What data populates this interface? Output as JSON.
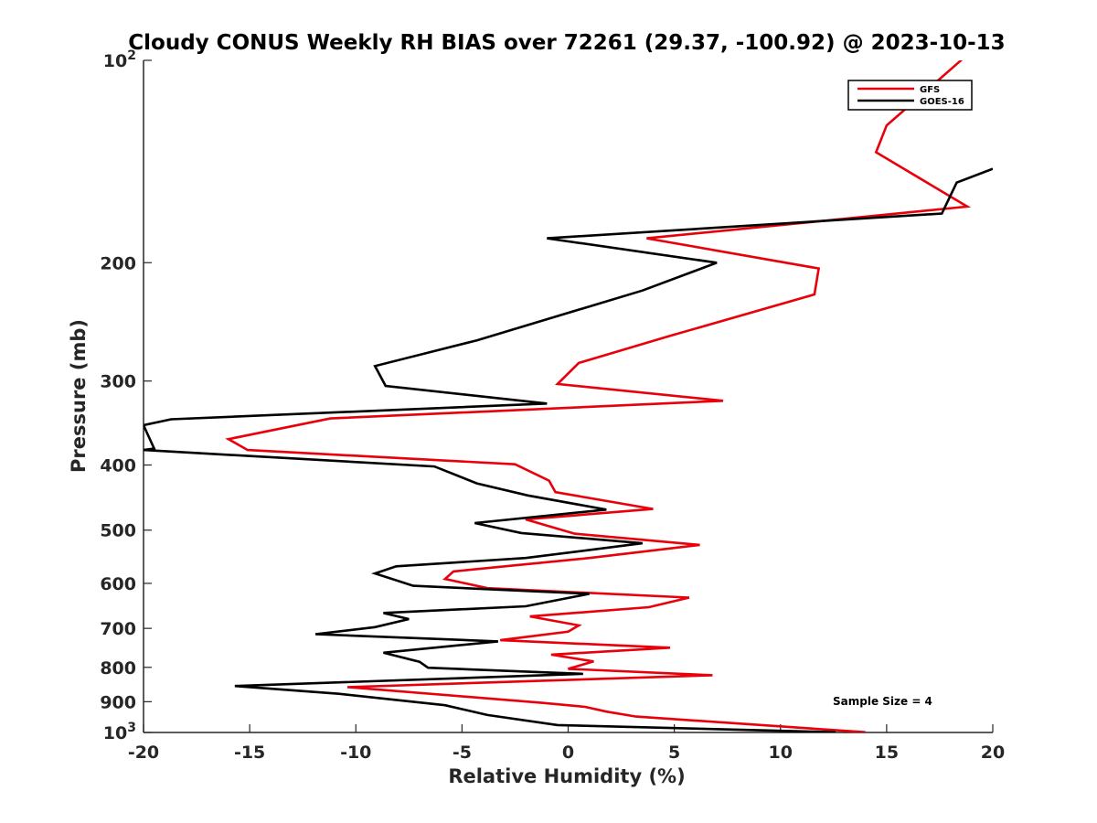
{
  "chart_data": {
    "type": "line",
    "title": "Cloudy CONUS Weekly RH BIAS over 72261 (29.37, -100.92) @ 2023-10-13",
    "xlabel": "Relative Humidity (%)",
    "ylabel": "Pressure (mb)",
    "xlim": [
      -20,
      20
    ],
    "ylim": [
      100,
      1000
    ],
    "y_scale": "log",
    "y_reversed": true,
    "grid": false,
    "legend_position": "top-right",
    "x_ticks": [
      "-20",
      "-15",
      "-10",
      "-5",
      "0",
      "5",
      "10",
      "15",
      "20"
    ],
    "y_ticks": [
      {
        "value": 100,
        "base": "10",
        "exp": "2"
      },
      {
        "value": 200,
        "label": "200"
      },
      {
        "value": 300,
        "label": "300"
      },
      {
        "value": 400,
        "label": "400"
      },
      {
        "value": 500,
        "label": "500"
      },
      {
        "value": 600,
        "label": "600"
      },
      {
        "value": 700,
        "label": "700"
      },
      {
        "value": 800,
        "label": "800"
      },
      {
        "value": 900,
        "label": "900"
      },
      {
        "value": 1000,
        "base": "10",
        "exp": "3"
      }
    ],
    "annotation": "Sample Size = 4",
    "series": [
      {
        "name": "GFS",
        "color": "#e8000b",
        "points": [
          [
            17.0,
            90
          ],
          [
            18.5,
            100
          ],
          [
            15.0,
            125
          ],
          [
            14.5,
            137
          ],
          [
            18.8,
            165
          ],
          [
            3.7,
            184
          ],
          [
            11.8,
            204
          ],
          [
            11.6,
            223
          ],
          [
            4.8,
            257
          ],
          [
            0.5,
            282
          ],
          [
            -0.5,
            303
          ],
          [
            7.3,
            321
          ],
          [
            -11.2,
            341
          ],
          [
            -16.0,
            366
          ],
          [
            -15.1,
            380
          ],
          [
            -2.5,
            399
          ],
          [
            -0.9,
            422
          ],
          [
            -0.6,
            439
          ],
          [
            4.0,
            465
          ],
          [
            -2.0,
            482
          ],
          [
            0.3,
            506
          ],
          [
            6.2,
            526
          ],
          [
            1.0,
            550
          ],
          [
            -5.4,
            576
          ],
          [
            -5.8,
            591
          ],
          [
            -3.8,
            610
          ],
          [
            5.7,
            630
          ],
          [
            3.8,
            651
          ],
          [
            -1.8,
            672
          ],
          [
            0.5,
            693
          ],
          [
            0.0,
            708
          ],
          [
            -3.2,
            729
          ],
          [
            4.8,
            748
          ],
          [
            -0.8,
            766
          ],
          [
            1.2,
            784
          ],
          [
            0.0,
            804
          ],
          [
            6.8,
            822
          ],
          [
            -10.4,
            856
          ],
          [
            -1.3,
            903
          ],
          [
            0.8,
            916
          ],
          [
            1.8,
            931
          ],
          [
            3.2,
            947
          ],
          [
            14.0,
            999
          ]
        ]
      },
      {
        "name": "GOES-16",
        "color": "#000000",
        "points": [
          [
            20.0,
            145
          ],
          [
            18.3,
            152
          ],
          [
            17.6,
            169
          ],
          [
            -1.0,
            184
          ],
          [
            7.0,
            200
          ],
          [
            3.5,
            220
          ],
          [
            -4.3,
            261
          ],
          [
            -9.1,
            285
          ],
          [
            -8.6,
            305
          ],
          [
            -1.0,
            324
          ],
          [
            -18.7,
            342
          ],
          [
            -20.0,
            349
          ],
          [
            -19.5,
            378
          ],
          [
            -20.0,
            380
          ],
          [
            -6.3,
            402
          ],
          [
            -4.3,
            426
          ],
          [
            -1.9,
            444
          ],
          [
            1.8,
            466
          ],
          [
            -4.4,
            488
          ],
          [
            -2.2,
            505
          ],
          [
            3.5,
            523
          ],
          [
            -2.0,
            550
          ],
          [
            -8.1,
            566
          ],
          [
            -9.1,
            580
          ],
          [
            -7.3,
            605
          ],
          [
            1.0,
            622
          ],
          [
            -2.0,
            649
          ],
          [
            -8.7,
            664
          ],
          [
            -7.5,
            678
          ],
          [
            -9.1,
            697
          ],
          [
            -11.9,
            714
          ],
          [
            -3.3,
            732
          ],
          [
            -8.7,
            761
          ],
          [
            -7.0,
            785
          ],
          [
            -6.6,
            801
          ],
          [
            0.7,
            818
          ],
          [
            -15.7,
            853
          ],
          [
            -10.8,
            876
          ],
          [
            -5.8,
            911
          ],
          [
            -3.8,
            942
          ],
          [
            -0.5,
            975
          ],
          [
            12.6,
            999
          ]
        ]
      }
    ]
  }
}
